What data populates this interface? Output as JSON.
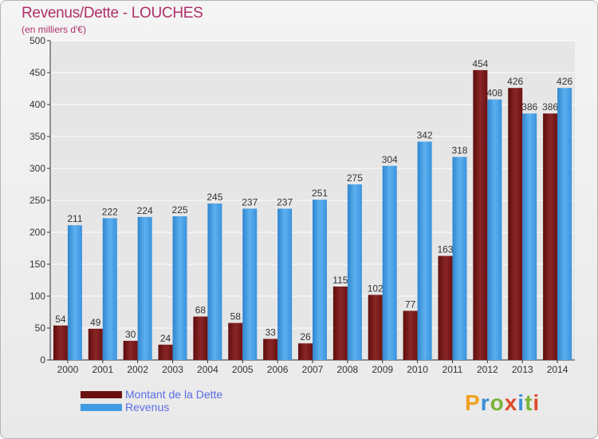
{
  "title": "Revenus/Dette - LOUCHES",
  "subtitle": "(en milliers d'€)",
  "colors": {
    "dette": "#7b1818",
    "revenus": "#3f9be2",
    "title": "#b0306a",
    "legend_text": "#5a6ee6"
  },
  "legend": [
    {
      "label": "Montant de la Dette",
      "color": "#6b0f0f"
    },
    {
      "label": "Revenus",
      "color": "#3f9be2"
    }
  ],
  "logo": {
    "letters": [
      "P",
      "r",
      "o",
      "x",
      "i",
      "t",
      "i"
    ],
    "colors": [
      "#f0a020",
      "#3b8fd8",
      "#7ab33a",
      "#e04b2a",
      "#3b8fd8",
      "#7ab33a",
      "#e04b2a"
    ]
  },
  "chart_data": {
    "type": "bar",
    "title": "Revenus/Dette - LOUCHES",
    "subtitle": "(en milliers d'€)",
    "categories": [
      "2000",
      "2001",
      "2002",
      "2003",
      "2004",
      "2005",
      "2006",
      "2007",
      "2008",
      "2009",
      "2010",
      "2011",
      "2012",
      "2013",
      "2014"
    ],
    "series": [
      {
        "name": "Montant de la Dette",
        "values": [
          54,
          49,
          30,
          24,
          68,
          58,
          33,
          26,
          115,
          102,
          77,
          163,
          454,
          426,
          386
        ]
      },
      {
        "name": "Revenus",
        "values": [
          211,
          222,
          224,
          225,
          245,
          237,
          237,
          251,
          275,
          304,
          342,
          318,
          408,
          386,
          426
        ]
      }
    ],
    "ylim": [
      0,
      500
    ],
    "yticks": [
      0,
      50,
      100,
      150,
      200,
      250,
      300,
      350,
      400,
      450,
      500
    ],
    "grid": true,
    "legend_position": "bottom-left"
  }
}
